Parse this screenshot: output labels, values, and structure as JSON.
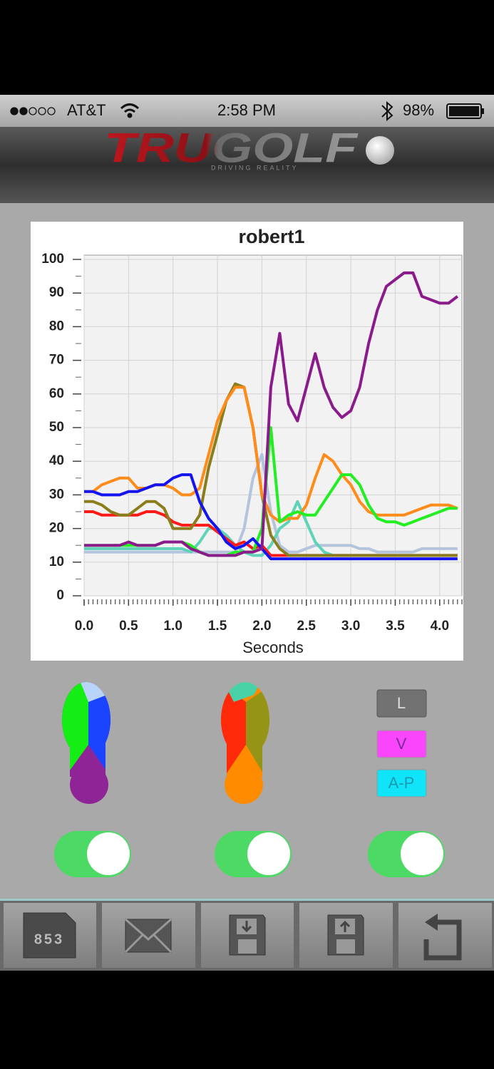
{
  "status_bar": {
    "carrier": "AT&T",
    "time": "2:58 PM",
    "battery": "98%"
  },
  "header": {
    "logo": "TRUGOLF",
    "tagline": "DRIVING REALITY"
  },
  "chart_data": {
    "type": "line",
    "title": "robert1",
    "x_label": "Seconds",
    "x": [
      0,
      0.1,
      0.2,
      0.3,
      0.4,
      0.5,
      0.6,
      0.7,
      0.8,
      0.9,
      1.0,
      1.1,
      1.2,
      1.3,
      1.4,
      1.5,
      1.6,
      1.7,
      1.8,
      1.9,
      2.0,
      2.1,
      2.2,
      2.3,
      2.4,
      2.5,
      2.6,
      2.7,
      2.8,
      2.9,
      3.0,
      3.1,
      3.2,
      3.3,
      3.4,
      3.5,
      3.6,
      3.7,
      3.8,
      3.9,
      4.0,
      4.1,
      4.2
    ],
    "xlim": [
      0,
      4.25
    ],
    "xticks": [
      {
        "value": 0,
        "label": "0.0"
      },
      0.5,
      {
        "value": 1,
        "label": "1.0"
      },
      1.5,
      {
        "value": 2,
        "label": "2.0"
      },
      2.5,
      {
        "value": 3,
        "label": "3.0"
      },
      3.5,
      {
        "value": 4,
        "label": "4.0"
      }
    ],
    "ylim": [
      0,
      100
    ],
    "yticks": [
      0,
      10,
      20,
      30,
      40,
      50,
      60,
      70,
      80,
      90,
      100
    ],
    "grid": true,
    "series": [
      {
        "color": "#b4c4dc",
        "values": [
          13,
          13,
          13,
          13,
          13,
          13,
          13,
          13,
          13,
          13,
          13,
          13,
          13,
          13,
          13,
          13,
          13,
          13,
          20,
          35,
          42,
          25,
          15,
          13,
          13,
          14,
          15,
          15,
          15,
          15,
          15,
          14,
          14,
          13,
          13,
          13,
          13,
          13,
          14,
          14,
          14,
          14,
          14
        ]
      },
      {
        "color": "#5fd3b8",
        "values": [
          14,
          14,
          14,
          14,
          14,
          14,
          14,
          14,
          14,
          14,
          14,
          14,
          13,
          16,
          20,
          20,
          18,
          15,
          13,
          12,
          12,
          15,
          20,
          22,
          28,
          22,
          16,
          13,
          12,
          12,
          12,
          12,
          12,
          12,
          12,
          12,
          12,
          12,
          12,
          12,
          12,
          12,
          12
        ]
      },
      {
        "color": "#ff1a1a",
        "values": [
          25,
          25,
          24,
          24,
          24,
          24,
          24,
          25,
          25,
          24,
          22,
          21,
          21,
          21,
          21,
          19,
          17,
          15,
          16,
          14,
          15,
          12,
          12,
          12,
          12,
          12,
          12,
          12,
          12,
          12,
          12,
          12,
          12,
          12,
          12,
          12,
          12,
          12,
          12,
          12,
          12,
          12,
          12
        ]
      },
      {
        "color": "#8a7d1c",
        "values": [
          28,
          28,
          27,
          25,
          24,
          24,
          26,
          28,
          28,
          26,
          20,
          20,
          20,
          24,
          38,
          48,
          58,
          63,
          62,
          50,
          30,
          18,
          14,
          12,
          12,
          12,
          12,
          12,
          12,
          12,
          12,
          12,
          12,
          12,
          12,
          12,
          12,
          12,
          12,
          12,
          12,
          12,
          12
        ]
      },
      {
        "color": "#ff8c1a",
        "values": [
          31,
          31,
          33,
          34,
          35,
          35,
          32,
          32,
          33,
          33,
          32,
          30,
          30,
          32,
          42,
          52,
          58,
          62,
          62,
          50,
          30,
          24,
          22,
          23,
          23,
          27,
          35,
          42,
          40,
          36,
          33,
          28,
          25,
          24,
          24,
          24,
          24,
          25,
          26,
          27,
          27,
          27,
          26
        ]
      },
      {
        "color": "#22ee22",
        "values": [
          15,
          15,
          15,
          15,
          15,
          15,
          15,
          15,
          15,
          16,
          16,
          16,
          15,
          13,
          12,
          12,
          12,
          13,
          13,
          13,
          20,
          50,
          22,
          24,
          25,
          24,
          24,
          28,
          32,
          36,
          36,
          33,
          27,
          23,
          22,
          22,
          21,
          22,
          23,
          24,
          25,
          26,
          26
        ]
      },
      {
        "color": "#1414f0",
        "values": [
          31,
          31,
          30,
          30,
          30,
          31,
          31,
          32,
          33,
          33,
          35,
          36,
          36,
          28,
          23,
          20,
          16,
          14,
          15,
          17,
          14,
          11,
          11,
          11,
          11,
          11,
          11,
          11,
          11,
          11,
          11,
          11,
          11,
          11,
          11,
          11,
          11,
          11,
          11,
          11,
          11,
          11,
          11
        ]
      },
      {
        "color": "#8b1a8b",
        "values": [
          15,
          15,
          15,
          15,
          15,
          16,
          15,
          15,
          15,
          16,
          16,
          16,
          14,
          13,
          12,
          12,
          12,
          12,
          13,
          13,
          14,
          62,
          78,
          57,
          52,
          62,
          72,
          62,
          56,
          53,
          55,
          62,
          75,
          85,
          92,
          94,
          96,
          96,
          89,
          88,
          87,
          87,
          89
        ]
      }
    ]
  },
  "buttons": [
    "L",
    "V",
    "A-P"
  ],
  "toolbar": {
    "counter": "853"
  }
}
